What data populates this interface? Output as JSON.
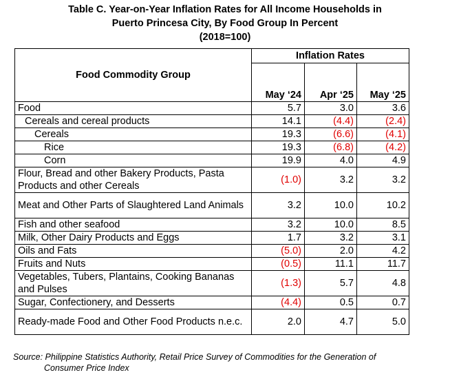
{
  "title": {
    "line1": "Table C. Year-on-Year Inflation Rates for All Income Households in",
    "line2": "Puerto Princesa City, By Food Group In Percent",
    "line3": "(2018=100)"
  },
  "table": {
    "group_header": "Food Commodity Group",
    "rates_header": "Inflation Rates",
    "columns": [
      "May ‘24",
      "Apr ‘25",
      "May ‘25"
    ],
    "rows": [
      {
        "label": "Food",
        "indent": 0,
        "lines": 1,
        "values": [
          "5.7",
          "3.0",
          "3.6"
        ],
        "negative": [
          false,
          false,
          false
        ]
      },
      {
        "label": "Cereals and cereal products",
        "indent": 1,
        "lines": 1,
        "values": [
          "14.1",
          "(4.4)",
          "(2.4)"
        ],
        "negative": [
          false,
          true,
          true
        ]
      },
      {
        "label": "Cereals",
        "indent": 2,
        "lines": 1,
        "values": [
          "19.3",
          "(6.6)",
          "(4.1)"
        ],
        "negative": [
          false,
          true,
          true
        ]
      },
      {
        "label": "Rice",
        "indent": 3,
        "lines": 1,
        "values": [
          "19.3",
          "(6.8)",
          "(4.2)"
        ],
        "negative": [
          false,
          true,
          true
        ]
      },
      {
        "label": "Corn",
        "indent": 3,
        "lines": 1,
        "values": [
          "19.9",
          "4.0",
          "4.9"
        ],
        "negative": [
          false,
          false,
          false
        ]
      },
      {
        "label": "Flour, Bread and other Bakery Products, Pasta Products and other Cereals",
        "indent": 0,
        "lines": 2,
        "values": [
          "(1.0)",
          "3.2",
          "3.2"
        ],
        "negative": [
          true,
          false,
          false
        ]
      },
      {
        "label": "Meat and Other Parts of Slaughtered Land Animals",
        "indent": 0,
        "lines": 2,
        "values": [
          "3.2",
          "10.0",
          "10.2"
        ],
        "negative": [
          false,
          false,
          false
        ]
      },
      {
        "label": "Fish and other seafood",
        "indent": 0,
        "lines": 1,
        "values": [
          "3.2",
          "10.0",
          "8.5"
        ],
        "negative": [
          false,
          false,
          false
        ]
      },
      {
        "label": "Milk, Other Dairy Products and Eggs",
        "indent": 0,
        "lines": 1,
        "values": [
          "1.7",
          "3.2",
          "3.1"
        ],
        "negative": [
          false,
          false,
          false
        ]
      },
      {
        "label": "Oils and Fats",
        "indent": 0,
        "lines": 1,
        "values": [
          "(5.0)",
          "2.0",
          "4.2"
        ],
        "negative": [
          true,
          false,
          false
        ]
      },
      {
        "label": "Fruits and Nuts",
        "indent": 0,
        "lines": 1,
        "values": [
          "(0.5)",
          "11.1",
          "11.7"
        ],
        "negative": [
          true,
          false,
          false
        ]
      },
      {
        "label": "Vegetables, Tubers, Plantains, Cooking Bananas and Pulses",
        "indent": 0,
        "lines": 2,
        "values": [
          "(1.3)",
          "5.7",
          "4.8"
        ],
        "negative": [
          true,
          false,
          false
        ]
      },
      {
        "label": "Sugar, Confectionery, and Desserts",
        "indent": 0,
        "lines": 1,
        "values": [
          "(4.4)",
          "0.5",
          "0.7"
        ],
        "negative": [
          true,
          false,
          false
        ]
      },
      {
        "label": "Ready-made Food and Other Food Products n.e.c.",
        "indent": 0,
        "lines": 2,
        "values": [
          "2.0",
          "4.7",
          "5.0"
        ],
        "negative": [
          false,
          false,
          false
        ]
      }
    ]
  },
  "source": {
    "line1": "Source: Philippine Statistics Authority, Retail Price Survey of Commodities for the Generation of",
    "line2": "Consumer Price Index"
  },
  "colors": {
    "negative": "#e00000",
    "text": "#000000",
    "border": "#000000"
  }
}
